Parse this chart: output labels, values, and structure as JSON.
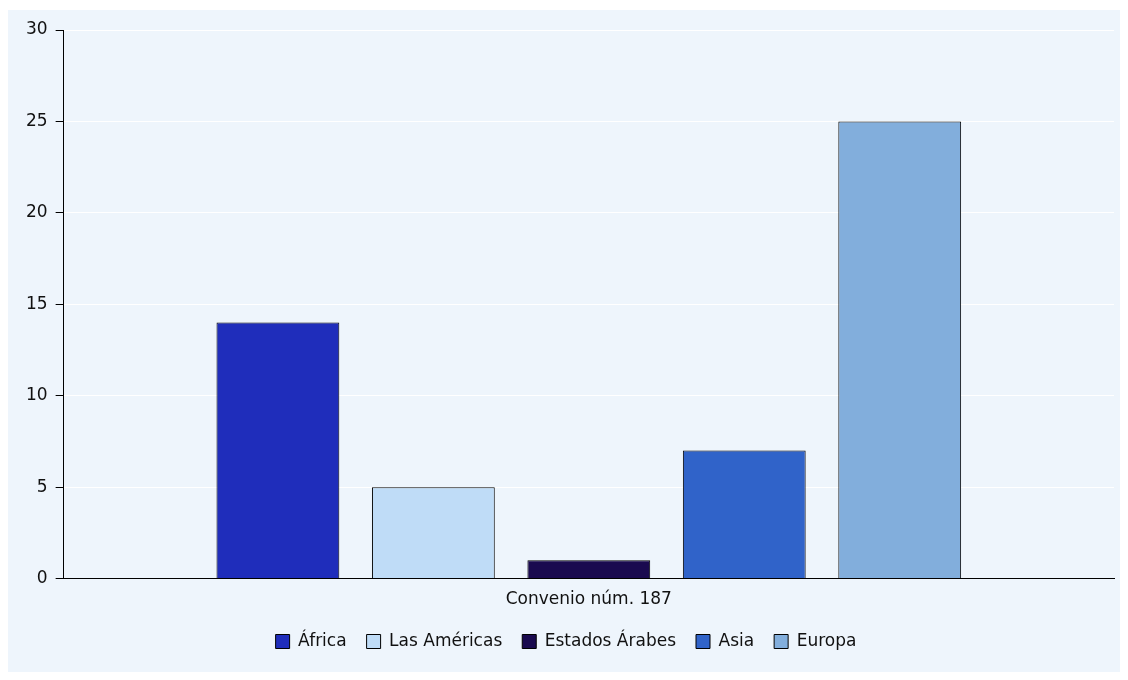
{
  "chart_data": {
    "type": "bar",
    "categories": [
      "Convenio núm. 187"
    ],
    "series": [
      {
        "name": "África",
        "color": "#1f2dbb",
        "values": [
          14
        ]
      },
      {
        "name": "Las Américas",
        "color": "#bfdcf7",
        "values": [
          5
        ]
      },
      {
        "name": "Estados Árabes",
        "color": "#1a0a4f",
        "values": [
          1
        ]
      },
      {
        "name": "Asia",
        "color": "#3063c9",
        "values": [
          7
        ]
      },
      {
        "name": "Europa",
        "color": "#82aedc",
        "values": [
          25
        ]
      }
    ],
    "ylim": [
      0,
      30
    ],
    "yticks": [
      0,
      5,
      10,
      15,
      20,
      25,
      30
    ],
    "grid": "y",
    "legend": "bottom"
  }
}
